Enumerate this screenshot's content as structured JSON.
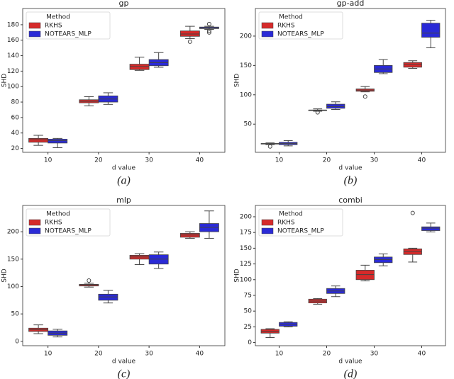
{
  "chart_data": [
    {
      "type": "box",
      "title": "gp",
      "xlabel": "d value",
      "ylabel": "SHD",
      "caption": "(a)",
      "legend_title": "Method",
      "categories": [
        "10",
        "20",
        "30",
        "40"
      ],
      "ylim": [
        15,
        201
      ],
      "yticks": [
        20,
        40,
        60,
        80,
        100,
        120,
        140,
        160,
        180
      ],
      "series": [
        {
          "name": "RKHS",
          "color": "#d62a2a",
          "values": [
            {
              "min": 24,
              "q1": 28,
              "median": 31,
              "q3": 33,
              "max": 37,
              "outliers": []
            },
            {
              "min": 75,
              "q1": 79,
              "median": 81,
              "q3": 83,
              "max": 87,
              "outliers": []
            },
            {
              "min": 121,
              "q1": 122,
              "median": 126,
              "q3": 129,
              "max": 138,
              "outliers": []
            },
            {
              "min": 162,
              "q1": 165,
              "median": 168,
              "q3": 172,
              "max": 178,
              "outliers": [
                158
              ]
            }
          ]
        },
        {
          "name": "NOTEARS_MLP",
          "color": "#2a2ad6",
          "values": [
            {
              "min": 21,
              "q1": 27,
              "median": 30,
              "q3": 32,
              "max": 33,
              "outliers": []
            },
            {
              "min": 77,
              "q1": 80,
              "median": 84,
              "q3": 88,
              "max": 92,
              "outliers": []
            },
            {
              "min": 125,
              "q1": 127,
              "median": 131,
              "q3": 135,
              "max": 144,
              "outliers": []
            },
            {
              "min": 174,
              "q1": 175,
              "median": 176,
              "q3": 177,
              "max": 178,
              "outliers": [
                170,
                172,
                181
              ]
            }
          ]
        }
      ]
    },
    {
      "type": "box",
      "title": "gp-add",
      "xlabel": "d value",
      "ylabel": "SHD",
      "caption": "(b)",
      "legend_title": "Method",
      "categories": [
        "10",
        "20",
        "30",
        "40"
      ],
      "ylim": [
        2,
        247
      ],
      "yticks": [
        50,
        100,
        150,
        200
      ],
      "series": [
        {
          "name": "RKHS",
          "color": "#d62a2a",
          "values": [
            {
              "min": 15,
              "q1": 16,
              "median": 17,
              "q3": 17,
              "max": 18,
              "outliers": [
                12
              ]
            },
            {
              "min": 72,
              "q1": 73,
              "median": 74,
              "q3": 74,
              "max": 76,
              "outliers": [
                70
              ]
            },
            {
              "min": 105,
              "q1": 106,
              "median": 108,
              "q3": 110,
              "max": 114,
              "outliers": [
                97
              ]
            },
            {
              "min": 145,
              "q1": 147,
              "median": 152,
              "q3": 155,
              "max": 158,
              "outliers": []
            }
          ]
        },
        {
          "name": "NOTEARS_MLP",
          "color": "#2a2ad6",
          "values": [
            {
              "min": 13,
              "q1": 15,
              "median": 17,
              "q3": 19,
              "max": 22,
              "outliers": []
            },
            {
              "min": 75,
              "q1": 77,
              "median": 80,
              "q3": 84,
              "max": 88,
              "outliers": []
            },
            {
              "min": 136,
              "q1": 138,
              "median": 144,
              "q3": 150,
              "max": 160,
              "outliers": []
            },
            {
              "min": 180,
              "q1": 198,
              "median": 205,
              "q3": 222,
              "max": 227,
              "outliers": []
            }
          ]
        }
      ]
    },
    {
      "type": "box",
      "title": "mlp",
      "xlabel": "d value",
      "ylabel": "SHD",
      "caption": "(c)",
      "legend_title": "Method",
      "categories": [
        "10",
        "20",
        "30",
        "40"
      ],
      "ylim": [
        -8,
        248
      ],
      "yticks": [
        0,
        50,
        100,
        150,
        200
      ],
      "series": [
        {
          "name": "RKHS",
          "color": "#d62a2a",
          "values": [
            {
              "min": 14,
              "q1": 18,
              "median": 21,
              "q3": 24,
              "max": 30,
              "outliers": []
            },
            {
              "min": 99,
              "q1": 101,
              "median": 103,
              "q3": 104,
              "max": 106,
              "outliers": [
                111
              ]
            },
            {
              "min": 140,
              "q1": 150,
              "median": 154,
              "q3": 157,
              "max": 160,
              "outliers": []
            },
            {
              "min": 188,
              "q1": 190,
              "median": 194,
              "q3": 197,
              "max": 200,
              "outliers": []
            }
          ]
        },
        {
          "name": "NOTEARS_MLP",
          "color": "#2a2ad6",
          "values": [
            {
              "min": 8,
              "q1": 11,
              "median": 15,
              "q3": 19,
              "max": 22,
              "outliers": []
            },
            {
              "min": 70,
              "q1": 75,
              "median": 81,
              "q3": 86,
              "max": 93,
              "outliers": []
            },
            {
              "min": 133,
              "q1": 141,
              "median": 150,
              "q3": 158,
              "max": 163,
              "outliers": []
            },
            {
              "min": 188,
              "q1": 200,
              "median": 208,
              "q3": 215,
              "max": 238,
              "outliers": []
            }
          ]
        }
      ]
    },
    {
      "type": "box",
      "title": "combi",
      "xlabel": "d value",
      "ylabel": "SHD",
      "caption": "(d)",
      "legend_title": "Method",
      "categories": [
        "10",
        "20",
        "30",
        "40"
      ],
      "ylim": [
        -5,
        218
      ],
      "yticks": [
        0,
        25,
        50,
        75,
        100,
        125,
        150,
        175,
        200
      ],
      "series": [
        {
          "name": "RKHS",
          "color": "#d62a2a",
          "values": [
            {
              "min": 8,
              "q1": 15,
              "median": 18,
              "q3": 21,
              "max": 22,
              "outliers": []
            },
            {
              "min": 61,
              "q1": 63,
              "median": 66,
              "q3": 69,
              "max": 70,
              "outliers": []
            },
            {
              "min": 98,
              "q1": 100,
              "median": 108,
              "q3": 115,
              "max": 123,
              "outliers": []
            },
            {
              "min": 128,
              "q1": 140,
              "median": 145,
              "q3": 149,
              "max": 150,
              "outliers": [
                206
              ]
            }
          ]
        },
        {
          "name": "NOTEARS_MLP",
          "color": "#2a2ad6",
          "values": [
            {
              "min": 25,
              "q1": 26,
              "median": 29,
              "q3": 32,
              "max": 33,
              "outliers": []
            },
            {
              "min": 73,
              "q1": 78,
              "median": 82,
              "q3": 86,
              "max": 90,
              "outliers": []
            },
            {
              "min": 122,
              "q1": 127,
              "median": 132,
              "q3": 136,
              "max": 141,
              "outliers": []
            },
            {
              "min": 176,
              "q1": 178,
              "median": 182,
              "q3": 184,
              "max": 190,
              "outliers": []
            }
          ]
        }
      ]
    }
  ]
}
